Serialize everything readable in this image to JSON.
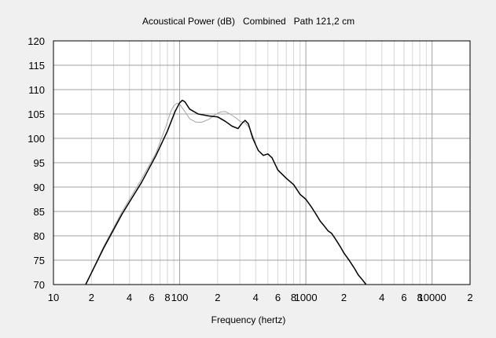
{
  "chart_data": {
    "type": "line",
    "title": "Acoustical Power (dB)   Combined   Path 121,2 cm",
    "xlabel": "Frequency (hertz)",
    "ylabel": "",
    "xscale": "log",
    "xlim": [
      10,
      20000
    ],
    "ylim": [
      70,
      120
    ],
    "yticks": [
      70,
      75,
      80,
      85,
      90,
      95,
      100,
      105,
      110,
      115,
      120
    ],
    "xtick_labels": [
      {
        "v": 10,
        "t": "10"
      },
      {
        "v": 20,
        "t": "2"
      },
      {
        "v": 40,
        "t": "4"
      },
      {
        "v": 60,
        "t": "6"
      },
      {
        "v": 80,
        "t": "8"
      },
      {
        "v": 100,
        "t": "100"
      },
      {
        "v": 200,
        "t": "2"
      },
      {
        "v": 400,
        "t": "4"
      },
      {
        "v": 600,
        "t": "6"
      },
      {
        "v": 800,
        "t": "8"
      },
      {
        "v": 1000,
        "t": "1000"
      },
      {
        "v": 2000,
        "t": "2"
      },
      {
        "v": 4000,
        "t": "4"
      },
      {
        "v": 6000,
        "t": "6"
      },
      {
        "v": 8000,
        "t": "8"
      },
      {
        "v": 10000,
        "t": "10000"
      },
      {
        "v": 20000,
        "t": "2"
      }
    ],
    "grid": true,
    "legend": "none",
    "series": [
      {
        "color": "#000000",
        "x": [
          18,
          25,
          35,
          50,
          65,
          80,
          92,
          100,
          105,
          110,
          120,
          140,
          170,
          200,
          230,
          260,
          290,
          310,
          330,
          350,
          380,
          420,
          460,
          500,
          540,
          600,
          700,
          800,
          900,
          1000,
          1100,
          1200,
          1300,
          1400,
          1500,
          1600,
          1700,
          1800,
          1900,
          2000,
          2200,
          2400,
          2600,
          2800,
          3000
        ],
        "y": [
          70,
          77.5,
          84.5,
          91,
          96.5,
          101.5,
          105.5,
          107.3,
          107.8,
          107.5,
          106,
          105,
          104.6,
          104.4,
          103.5,
          102.5,
          102,
          103,
          103.7,
          103,
          100,
          97.5,
          96.5,
          96.8,
          96,
          93.5,
          91.8,
          90.5,
          88.5,
          87.5,
          86,
          84.5,
          83,
          82,
          81,
          80.5,
          79.5,
          78.5,
          77.5,
          76.5,
          75,
          73.5,
          72,
          71,
          70
        ]
      },
      {
        "color": "#a6a6a6",
        "x": [
          18,
          25,
          35,
          50,
          65,
          78,
          85,
          90,
          95,
          100,
          110,
          120,
          135,
          150,
          170,
          190,
          210,
          230,
          250,
          280,
          300,
          330,
          360,
          400
        ],
        "y": [
          70,
          77.8,
          85,
          91.7,
          97,
          102.5,
          105.5,
          106.7,
          107.2,
          107,
          105.5,
          104,
          103.3,
          103.3,
          103.9,
          104.8,
          105.4,
          105.5,
          105,
          104.2,
          103.5,
          103.2,
          102,
          99
        ]
      }
    ]
  }
}
